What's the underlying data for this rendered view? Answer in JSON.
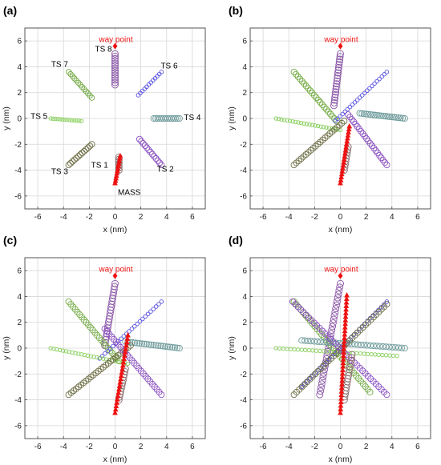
{
  "colors": {
    "grid": "#d7d7d7",
    "frame": "#444444",
    "ts1": "#8a6f6f",
    "ts2": "#8a4fbf",
    "ts3": "#6e6e46",
    "ts4": "#6f9b9b",
    "ts5": "#86cf5a",
    "ts6": "#5a52e0",
    "ts7": "#74ab45",
    "ts8": "#8a55a6",
    "mass": "#ee1111",
    "waypoint": "#ee1111"
  },
  "chart_data": [
    {
      "type": "scatter",
      "title": "(a)",
      "xlabel": "x (nm)",
      "ylabel": "y (nm)",
      "xlim": [
        -7,
        7
      ],
      "ylim": [
        -7,
        7
      ],
      "ticks": [
        -6,
        -4,
        -2,
        0,
        2,
        4,
        6
      ],
      "grid": true,
      "waypoint": {
        "label": "way point",
        "x": 0,
        "y": 5.6
      },
      "annotations": [
        {
          "text": "TS 8",
          "x": -0.9,
          "y": 5.4
        },
        {
          "text": "TS 7",
          "x": -4.3,
          "y": 4.2
        },
        {
          "text": "TS 6",
          "x": 4.2,
          "y": 4.1
        },
        {
          "text": "TS 5",
          "x": -5.9,
          "y": 0.2
        },
        {
          "text": "TS 4",
          "x": 6.0,
          "y": 0.1
        },
        {
          "text": "TS 3",
          "x": -4.3,
          "y": -4.1
        },
        {
          "text": "TS 2",
          "x": 3.9,
          "y": -3.9
        },
        {
          "text": "TS 1",
          "x": -1.2,
          "y": -3.6
        },
        {
          "text": "MASS",
          "x": 1.1,
          "y": -5.7
        }
      ],
      "tracks": [
        {
          "color": "ts8",
          "start": [
            0,
            5.0
          ],
          "end": [
            0,
            2.6
          ],
          "n": 14,
          "r": 4
        },
        {
          "color": "ts7",
          "start": [
            -3.6,
            3.6
          ],
          "end": [
            -1.8,
            1.6
          ],
          "n": 13,
          "r": 3.2
        },
        {
          "color": "ts6",
          "start": [
            3.6,
            3.6
          ],
          "end": [
            1.8,
            1.8
          ],
          "n": 12,
          "r": 2.3
        },
        {
          "color": "ts5",
          "start": [
            -5.0,
            0.0
          ],
          "end": [
            -2.6,
            -0.2
          ],
          "n": 14,
          "r": 2.2
        },
        {
          "color": "ts4",
          "start": [
            5.0,
            0.0
          ],
          "end": [
            3.0,
            0.0
          ],
          "n": 14,
          "r": 3.6
        },
        {
          "color": "ts3",
          "start": [
            -3.6,
            -3.6
          ],
          "end": [
            -1.8,
            -2.0
          ],
          "n": 13,
          "r": 3.6
        },
        {
          "color": "ts2",
          "start": [
            3.6,
            -3.6
          ],
          "end": [
            1.9,
            -1.6
          ],
          "n": 13,
          "r": 3.6
        },
        {
          "color": "ts1",
          "start": [
            0.3,
            -4.0
          ],
          "end": [
            0.3,
            -3.0
          ],
          "n": 7,
          "r": 4
        },
        {
          "color": "mass",
          "marker": "triangle",
          "start": [
            0.0,
            -5.0
          ],
          "end": [
            0.4,
            -2.9
          ],
          "n": 12,
          "r": 3.4
        }
      ]
    },
    {
      "type": "scatter",
      "title": "(b)",
      "xlabel": "x (nm)",
      "ylabel": "y (nm)",
      "xlim": [
        -7,
        7
      ],
      "ylim": [
        -7,
        7
      ],
      "ticks": [
        -6,
        -4,
        -2,
        0,
        2,
        4,
        6
      ],
      "grid": true,
      "waypoint": {
        "label": "way point",
        "x": 0,
        "y": 5.6
      },
      "annotations": [],
      "tracks": [
        {
          "color": "ts8",
          "start": [
            0,
            5.0
          ],
          "end": [
            -0.5,
            1.0
          ],
          "n": 20,
          "r": 4
        },
        {
          "color": "ts7",
          "start": [
            -3.6,
            3.6
          ],
          "end": [
            -0.3,
            -0.2
          ],
          "n": 22,
          "r": 3.6
        },
        {
          "color": "ts6",
          "start": [
            3.6,
            3.6
          ],
          "end": [
            -0.4,
            -0.2
          ],
          "n": 22,
          "r": 2.3
        },
        {
          "color": "ts5",
          "start": [
            -5.0,
            0.0
          ],
          "end": [
            0.0,
            -0.9
          ],
          "n": 24,
          "r": 2.2
        },
        {
          "color": "ts4",
          "start": [
            5.0,
            0.0
          ],
          "end": [
            1.5,
            0.4
          ],
          "n": 22,
          "r": 3.6
        },
        {
          "color": "ts3",
          "start": [
            -3.6,
            -3.6
          ],
          "end": [
            0.3,
            -0.2
          ],
          "n": 22,
          "r": 3.6
        },
        {
          "color": "ts2",
          "start": [
            3.6,
            -3.6
          ],
          "end": [
            0.6,
            0.3
          ],
          "n": 22,
          "r": 3.6
        },
        {
          "color": "ts1",
          "start": [
            0.3,
            -4.0
          ],
          "end": [
            0.6,
            -2.2
          ],
          "n": 9,
          "r": 4
        },
        {
          "color": "mass",
          "marker": "triangle",
          "start": [
            0.0,
            -5.0
          ],
          "end": [
            0.7,
            -0.6
          ],
          "n": 20,
          "r": 3.4
        }
      ]
    },
    {
      "type": "scatter",
      "title": "(c)",
      "xlabel": "x (nm)",
      "ylabel": "y (nm)",
      "xlim": [
        -7,
        7
      ],
      "ylim": [
        -7,
        7
      ],
      "ticks": [
        -6,
        -4,
        -2,
        0,
        2,
        4,
        6
      ],
      "grid": true,
      "waypoint": {
        "label": "way point",
        "x": 0,
        "y": 5.6
      },
      "annotations": [],
      "tracks": [
        {
          "color": "ts8",
          "start": [
            0,
            5.0
          ],
          "end": [
            -0.8,
            0.2
          ],
          "n": 22,
          "r": 4
        },
        {
          "color": "ts7",
          "start": [
            -3.6,
            3.6
          ],
          "end": [
            0.3,
            -1.0
          ],
          "n": 24,
          "r": 3.6
        },
        {
          "color": "ts6",
          "start": [
            3.6,
            3.6
          ],
          "end": [
            -1.2,
            -0.8
          ],
          "n": 24,
          "r": 2.3
        },
        {
          "color": "ts5",
          "start": [
            -5.0,
            0.0
          ],
          "end": [
            1.0,
            -1.2
          ],
          "n": 26,
          "r": 2.2
        },
        {
          "color": "ts4",
          "start": [
            5.0,
            0.0
          ],
          "end": [
            0.8,
            0.5
          ],
          "n": 24,
          "r": 3.6
        },
        {
          "color": "ts3",
          "start": [
            -3.6,
            -3.6
          ],
          "end": [
            1.2,
            0.2
          ],
          "n": 26,
          "r": 3.6
        },
        {
          "color": "ts2",
          "start": [
            3.6,
            -3.6
          ],
          "end": [
            -0.8,
            1.5
          ],
          "n": 26,
          "r": 3.6
        },
        {
          "color": "ts1",
          "start": [
            0.3,
            -4.0
          ],
          "end": [
            0.8,
            -1.6
          ],
          "n": 12,
          "r": 4
        },
        {
          "color": "mass",
          "marker": "triangle",
          "start": [
            0.0,
            -5.0
          ],
          "end": [
            1.0,
            1.0
          ],
          "n": 24,
          "r": 3.4
        }
      ]
    },
    {
      "type": "scatter",
      "title": "(d)",
      "xlabel": "x (nm)",
      "ylabel": "y (nm)",
      "xlim": [
        -7,
        7
      ],
      "ylim": [
        -7,
        7
      ],
      "ticks": [
        -6,
        -4,
        -2,
        0,
        2,
        4,
        6
      ],
      "grid": true,
      "waypoint": {
        "label": "way point",
        "x": 0,
        "y": 5.6
      },
      "annotations": [],
      "tracks": [
        {
          "color": "ts8",
          "start": [
            0,
            5.0
          ],
          "end": [
            -1.6,
            -3.6
          ],
          "n": 32,
          "r": 4
        },
        {
          "color": "ts7",
          "start": [
            -3.6,
            3.6
          ],
          "end": [
            2.3,
            -3.4
          ],
          "n": 34,
          "r": 3.6
        },
        {
          "color": "ts6",
          "start": [
            3.6,
            3.6
          ],
          "end": [
            -3.0,
            -3.0
          ],
          "n": 32,
          "r": 2.3
        },
        {
          "color": "ts5",
          "start": [
            -5.0,
            0.0
          ],
          "end": [
            4.4,
            -0.6
          ],
          "n": 34,
          "r": 2.2
        },
        {
          "color": "ts4",
          "start": [
            5.0,
            0.0
          ],
          "end": [
            -3.0,
            0.6
          ],
          "n": 34,
          "r": 3.6
        },
        {
          "color": "ts3",
          "start": [
            -3.6,
            -3.6
          ],
          "end": [
            3.6,
            3.4
          ],
          "n": 36,
          "r": 3.6
        },
        {
          "color": "ts2",
          "start": [
            3.6,
            -3.6
          ],
          "end": [
            -3.7,
            3.6
          ],
          "n": 36,
          "r": 3.6
        },
        {
          "color": "ts1",
          "start": [
            0.3,
            -4.0
          ],
          "end": [
            0.9,
            -0.5
          ],
          "n": 16,
          "r": 4
        },
        {
          "color": "mass",
          "marker": "triangle",
          "start": [
            0.0,
            -5.0
          ],
          "end": [
            0.5,
            4.1
          ],
          "n": 34,
          "r": 3.4
        }
      ]
    }
  ]
}
